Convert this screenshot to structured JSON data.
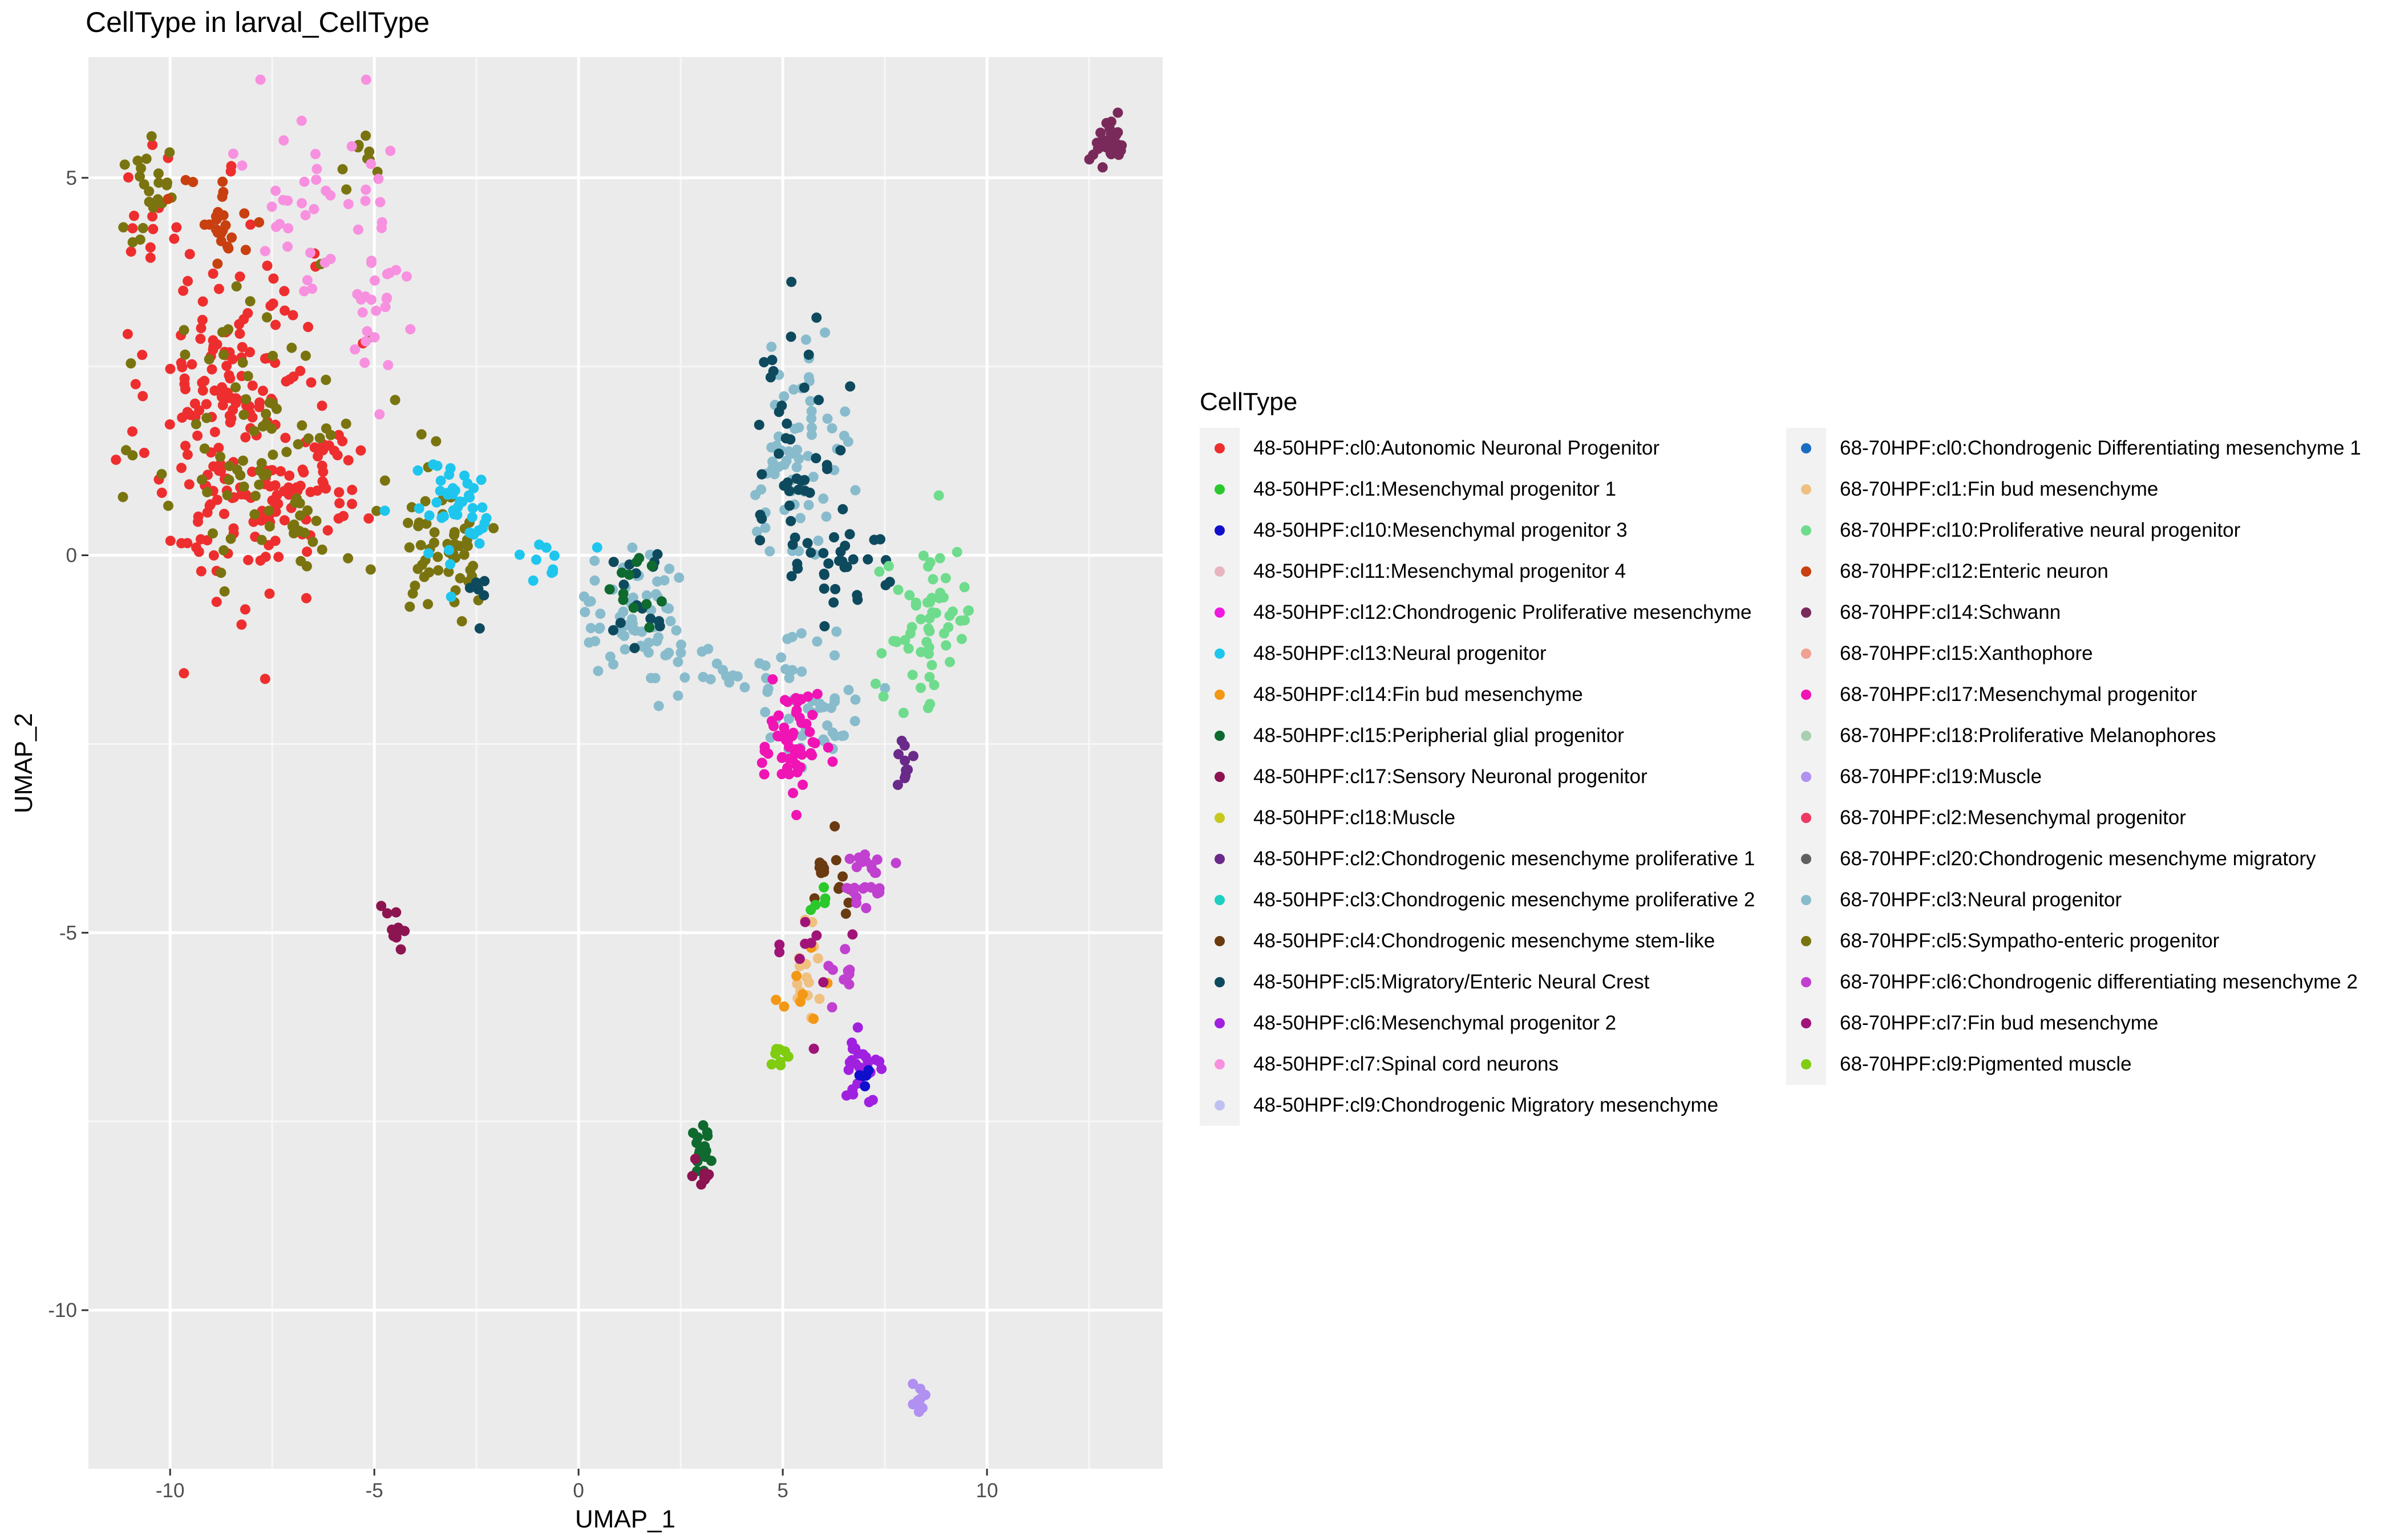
{
  "chart_data": {
    "type": "scatter",
    "title": "CellType in larval_CellType",
    "xlabel": "UMAP_1",
    "ylabel": "UMAP_2",
    "xlim": [
      -12,
      14.3
    ],
    "ylim": [
      -12.1,
      6.6
    ],
    "xticks": [
      -10,
      -5,
      0,
      5,
      10
    ],
    "yticks": [
      5,
      0,
      -5,
      -10
    ],
    "grid": true,
    "legend_position": "right",
    "legend_title": "CellType",
    "categories": [
      {
        "name": "48-50HPF:cl0:Autonomic Neuronal Progenitor",
        "color": "#ee2e2e"
      },
      {
        "name": "48-50HPF:cl1:Mesenchymal progenitor 1",
        "color": "#2bc82b"
      },
      {
        "name": "48-50HPF:cl10:Mesenchymal progenitor 3",
        "color": "#1010cc"
      },
      {
        "name": "48-50HPF:cl11:Mesenchymal progenitor 4",
        "color": "#e8b4c0"
      },
      {
        "name": "48-50HPF:cl12:Chondrogenic Proliferative mesenchyme",
        "color": "#f019e0"
      },
      {
        "name": "48-50HPF:cl13:Neural progenitor",
        "color": "#1ec6ee"
      },
      {
        "name": "48-50HPF:cl14:Fin bud mesenchyme",
        "color": "#f39814"
      },
      {
        "name": "48-50HPF:cl15:Peripherial glial progenitor",
        "color": "#0e6a2e"
      },
      {
        "name": "48-50HPF:cl17:Sensory Neuronal progenitor",
        "color": "#8c1450"
      },
      {
        "name": "48-50HPF:cl18:Muscle",
        "color": "#c8c81e"
      },
      {
        "name": "48-50HPF:cl2:Chondrogenic mesenchyme proliferative 1",
        "color": "#6a2a8a"
      },
      {
        "name": "48-50HPF:cl3:Chondrogenic mesenchyme proliferative 2",
        "color": "#1ed0c0"
      },
      {
        "name": "48-50HPF:cl4:Chondrogenic mesenchyme stem-like",
        "color": "#6a3a10"
      },
      {
        "name": "48-50HPF:cl5:Migratory/Enteric Neural Crest",
        "color": "#0e4a5e"
      },
      {
        "name": "48-50HPF:cl6:Mesenchymal progenitor 2",
        "color": "#a020e0"
      },
      {
        "name": "48-50HPF:cl7:Spinal cord neurons",
        "color": "#f890e0"
      },
      {
        "name": "48-50HPF:cl9:Chondrogenic Migratory mesenchyme",
        "color": "#c0c0f0"
      },
      {
        "name": "68-70HPF:cl0:Chondrogenic Differentiating mesenchyme 1",
        "color": "#1a6ec0"
      },
      {
        "name": "68-70HPF:cl1:Fin bud mesenchyme",
        "color": "#f0c080"
      },
      {
        "name": "68-70HPF:cl10:Proliferative neural progenitor",
        "color": "#6edc8c"
      },
      {
        "name": "68-70HPF:cl12:Enteric neuron",
        "color": "#c84010"
      },
      {
        "name": "68-70HPF:cl14:Schwann",
        "color": "#7a2a5a"
      },
      {
        "name": "68-70HPF:cl15:Xanthophore",
        "color": "#f0a090"
      },
      {
        "name": "68-70HPF:cl17:Mesenchymal progenitor",
        "color": "#f014b4"
      },
      {
        "name": "68-70HPF:cl18:Proliferative Melanophores",
        "color": "#a8d0b0"
      },
      {
        "name": "68-70HPF:cl19:Muscle",
        "color": "#b090f0"
      },
      {
        "name": "68-70HPF:cl2:Mesenchymal progenitor",
        "color": "#ee3a60"
      },
      {
        "name": "68-70HPF:cl20:Chondrogenic mesenchyme migratory",
        "color": "#606060"
      },
      {
        "name": "68-70HPF:cl3:Neural progenitor",
        "color": "#88bccc"
      },
      {
        "name": "68-70HPF:cl5:Sympatho-enteric progenitor",
        "color": "#7a7410"
      },
      {
        "name": "68-70HPF:cl6:Chondrogenic differentiating mesenchyme 2",
        "color": "#c040d0"
      },
      {
        "name": "68-70HPF:cl7:Fin bud mesenchyme",
        "color": "#a01478"
      },
      {
        "name": "68-70HPF:cl9:Pigmented muscle",
        "color": "#80cc10"
      }
    ],
    "clusters": [
      {
        "series": 0,
        "x": -8.5,
        "y": 1.8,
        "sx": 1.0,
        "sy": 1.3,
        "n": 200
      },
      {
        "series": 0,
        "x": -6.2,
        "y": 0.9,
        "sx": 0.6,
        "sy": 0.4,
        "n": 40
      },
      {
        "series": 0,
        "x": -10.3,
        "y": 4.3,
        "sx": 0.5,
        "sy": 0.6,
        "n": 15
      },
      {
        "series": 29,
        "x": -7.8,
        "y": 1.7,
        "sx": 1.3,
        "sy": 1.1,
        "n": 75
      },
      {
        "series": 29,
        "x": -10.5,
        "y": 4.8,
        "sx": 0.4,
        "sy": 0.4,
        "n": 22
      },
      {
        "series": 29,
        "x": -5.4,
        "y": 5.2,
        "sx": 0.4,
        "sy": 0.2,
        "n": 10
      },
      {
        "series": 29,
        "x": -3.2,
        "y": 0.2,
        "sx": 0.6,
        "sy": 0.5,
        "n": 55
      },
      {
        "series": 29,
        "x": -6.9,
        "y": 0.2,
        "sx": 0.5,
        "sy": 0.25,
        "n": 15
      },
      {
        "series": 20,
        "x": -8.7,
        "y": 4.4,
        "sx": 0.5,
        "sy": 0.3,
        "n": 25
      },
      {
        "series": 15,
        "x": -6.8,
        "y": 4.8,
        "sx": 0.7,
        "sy": 0.7,
        "n": 30
      },
      {
        "series": 15,
        "x": -5.0,
        "y": 3.8,
        "sx": 0.3,
        "sy": 0.9,
        "n": 35
      },
      {
        "series": 5,
        "x": -3.0,
        "y": 0.6,
        "sx": 0.6,
        "sy": 0.35,
        "n": 45
      },
      {
        "series": 5,
        "x": -0.7,
        "y": -0.05,
        "sx": 0.4,
        "sy": 0.15,
        "n": 10
      },
      {
        "series": 28,
        "x": 5.5,
        "y": 1.8,
        "sx": 0.6,
        "sy": 0.6,
        "n": 40
      },
      {
        "series": 28,
        "x": 5.0,
        "y": 0.8,
        "sx": 0.5,
        "sy": 0.4,
        "n": 25
      },
      {
        "series": 28,
        "x": 1.4,
        "y": -0.8,
        "sx": 0.7,
        "sy": 0.4,
        "n": 60
      },
      {
        "series": 28,
        "x": 3.2,
        "y": -1.5,
        "sx": 0.8,
        "sy": 0.2,
        "n": 25
      },
      {
        "series": 28,
        "x": 5.8,
        "y": -1.9,
        "sx": 0.6,
        "sy": 0.5,
        "n": 45
      },
      {
        "series": 13,
        "x": 5.3,
        "y": 1.3,
        "sx": 0.6,
        "sy": 0.9,
        "n": 45
      },
      {
        "series": 13,
        "x": 6.6,
        "y": -0.1,
        "sx": 0.6,
        "sy": 0.3,
        "n": 25
      },
      {
        "series": 13,
        "x": 1.6,
        "y": -0.6,
        "sx": 0.5,
        "sy": 0.4,
        "n": 15
      },
      {
        "series": 13,
        "x": -2.4,
        "y": -0.5,
        "sx": 0.2,
        "sy": 0.2,
        "n": 6
      },
      {
        "series": 19,
        "x": 8.6,
        "y": -0.9,
        "sx": 0.6,
        "sy": 0.6,
        "n": 60
      },
      {
        "series": 23,
        "x": 5.2,
        "y": -2.5,
        "sx": 0.35,
        "sy": 0.35,
        "n": 60
      },
      {
        "series": 7,
        "x": 1.2,
        "y": -0.5,
        "sx": 0.3,
        "sy": 0.2,
        "n": 12
      },
      {
        "series": 10,
        "x": 8.1,
        "y": -2.7,
        "sx": 0.3,
        "sy": 0.25,
        "n": 10
      },
      {
        "series": 12,
        "x": 6.1,
        "y": -4.3,
        "sx": 0.25,
        "sy": 0.3,
        "n": 15
      },
      {
        "series": 30,
        "x": 7.0,
        "y": -4.3,
        "sx": 0.3,
        "sy": 0.25,
        "n": 25
      },
      {
        "series": 30,
        "x": 6.5,
        "y": -5.8,
        "sx": 0.4,
        "sy": 0.3,
        "n": 10
      },
      {
        "series": 14,
        "x": 7.0,
        "y": -6.7,
        "sx": 0.2,
        "sy": 0.2,
        "n": 25
      },
      {
        "series": 2,
        "x": 7.1,
        "y": -6.9,
        "sx": 0.1,
        "sy": 0.1,
        "n": 5
      },
      {
        "series": 18,
        "x": 5.5,
        "y": -5.5,
        "sx": 0.2,
        "sy": 0.3,
        "n": 15
      },
      {
        "series": 6,
        "x": 5.5,
        "y": -5.8,
        "sx": 0.3,
        "sy": 0.35,
        "n": 8
      },
      {
        "series": 31,
        "x": 5.8,
        "y": -5.4,
        "sx": 0.5,
        "sy": 0.5,
        "n": 10
      },
      {
        "series": 32,
        "x": 4.9,
        "y": -6.7,
        "sx": 0.15,
        "sy": 0.15,
        "n": 8
      },
      {
        "series": 1,
        "x": 5.9,
        "y": -4.6,
        "sx": 0.2,
        "sy": 0.15,
        "n": 5
      },
      {
        "series": 7,
        "x": 3.0,
        "y": -7.8,
        "sx": 0.12,
        "sy": 0.25,
        "n": 15
      },
      {
        "series": 8,
        "x": 3.0,
        "y": -8.2,
        "sx": 0.1,
        "sy": 0.1,
        "n": 8
      },
      {
        "series": 8,
        "x": -4.5,
        "y": -4.9,
        "sx": 0.15,
        "sy": 0.15,
        "n": 10
      },
      {
        "series": 21,
        "x": 13.0,
        "y": 5.5,
        "sx": 0.2,
        "sy": 0.15,
        "n": 30
      },
      {
        "series": 25,
        "x": 8.3,
        "y": -11.2,
        "sx": 0.1,
        "sy": 0.1,
        "n": 8
      }
    ]
  },
  "legend": {
    "title": "CellType",
    "column1": [
      "48-50HPF:cl0:Autonomic Neuronal Progenitor",
      "48-50HPF:cl1:Mesenchymal progenitor 1",
      "48-50HPF:cl10:Mesenchymal progenitor 3",
      "48-50HPF:cl11:Mesenchymal progenitor 4",
      "48-50HPF:cl12:Chondrogenic Proliferative mesenchyme",
      "48-50HPF:cl13:Neural progenitor",
      "48-50HPF:cl14:Fin bud mesenchyme",
      "48-50HPF:cl15:Peripherial glial progenitor",
      "48-50HPF:cl17:Sensory Neuronal progenitor",
      "48-50HPF:cl18:Muscle",
      "48-50HPF:cl2:Chondrogenic mesenchyme proliferative 1",
      "48-50HPF:cl3:Chondrogenic mesenchyme proliferative 2",
      "48-50HPF:cl4:Chondrogenic mesenchyme stem-like",
      "48-50HPF:cl5:Migratory/Enteric Neural Crest",
      "48-50HPF:cl6:Mesenchymal progenitor 2",
      "48-50HPF:cl7:Spinal cord neurons",
      "48-50HPF:cl9:Chondrogenic Migratory mesenchyme"
    ],
    "column2": [
      "68-70HPF:cl0:Chondrogenic Differentiating mesenchyme 1",
      "68-70HPF:cl1:Fin bud mesenchyme",
      "68-70HPF:cl10:Proliferative neural progenitor",
      "68-70HPF:cl12:Enteric neuron",
      "68-70HPF:cl14:Schwann",
      "68-70HPF:cl15:Xanthophore",
      "68-70HPF:cl17:Mesenchymal progenitor",
      "68-70HPF:cl18:Proliferative Melanophores",
      "68-70HPF:cl19:Muscle",
      "68-70HPF:cl2:Mesenchymal progenitor",
      "68-70HPF:cl20:Chondrogenic mesenchyme migratory",
      "68-70HPF:cl3:Neural progenitor",
      "68-70HPF:cl5:Sympatho-enteric progenitor",
      "68-70HPF:cl6:Chondrogenic differentiating mesenchyme 2",
      "68-70HPF:cl7:Fin bud mesenchyme",
      "68-70HPF:cl9:Pigmented muscle"
    ]
  }
}
